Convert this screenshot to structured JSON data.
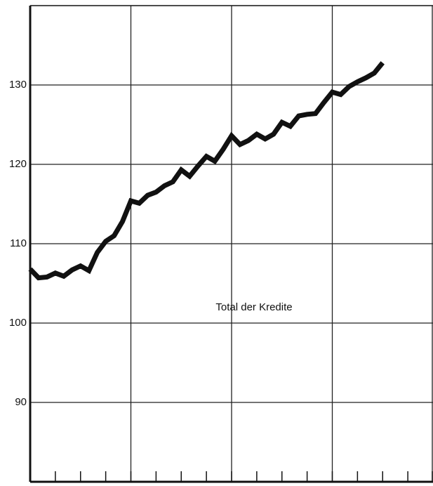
{
  "chart_data": {
    "type": "line",
    "annotation": "Total der Kredite",
    "x": [
      0,
      1,
      2,
      3,
      4,
      5,
      6,
      7,
      8,
      9,
      10,
      11,
      12,
      13,
      14,
      15,
      16,
      17,
      18,
      19,
      20,
      21,
      22,
      23,
      24,
      25,
      26,
      27,
      28,
      29,
      30,
      31,
      32,
      33,
      34,
      35,
      36,
      37,
      38,
      39,
      40,
      41,
      42
    ],
    "series": [
      {
        "color": "#111111",
        "values": [
          106.8,
          105.7,
          105.8,
          106.3,
          105.9,
          106.7,
          107.2,
          106.6,
          108.9,
          110.3,
          111.0,
          112.8,
          115.4,
          115.1,
          116.1,
          116.5,
          117.3,
          117.8,
          119.3,
          118.5,
          119.8,
          121.0,
          120.4,
          121.9,
          123.6,
          122.5,
          123.0,
          123.8,
          123.2,
          123.8,
          125.3,
          124.8,
          126.1,
          126.3,
          126.4,
          127.8,
          129.1,
          128.8,
          129.8,
          130.4,
          130.9,
          131.5,
          132.8
        ]
      }
    ],
    "xlim": [
      0,
      48
    ],
    "xticks": [
      0,
      3,
      6,
      9,
      12,
      15,
      18,
      21,
      24,
      27,
      30,
      33,
      36,
      39,
      42,
      45,
      48
    ],
    "xgrid": [
      0,
      12,
      24,
      36,
      48
    ],
    "ylim": [
      80,
      140
    ],
    "yticks": [
      90,
      100,
      110,
      120,
      130
    ],
    "grid": true
  }
}
